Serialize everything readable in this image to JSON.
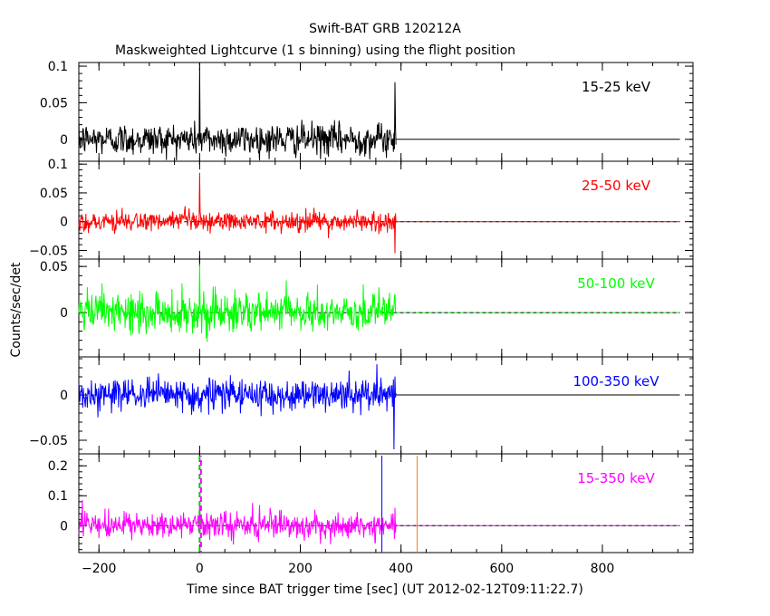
{
  "title": "Swift-BAT GRB 120212A",
  "subtitle": "Maskweighted Lightcurve (1 s binning) using the flight position",
  "colors": {
    "axis": "#000000",
    "t0_line": "#00cc00",
    "t90_line": "#0000ff",
    "end_line": "#ff8000"
  },
  "chart_data": {
    "type": "line",
    "title": "Swift-BAT GRB 120212A",
    "subtitle": "Maskweighted Lightcurve (1 s binning) using the flight position",
    "xlabel": "Time since BAT trigger time [sec] (UT 2012-02-12T09:11:22.7)",
    "ylabel": "Counts/sec/det",
    "xlim": [
      -240,
      980
    ],
    "x_ticks": [
      -200,
      0,
      200,
      400,
      600,
      800
    ],
    "markers": [
      {
        "x": 0,
        "color": "#00cc00",
        "style": "dashed"
      },
      {
        "x": 0,
        "color": "#ff00ff",
        "style": "dashed"
      },
      {
        "x": 362,
        "color": "#0000ff",
        "style": "solid"
      },
      {
        "x": 432,
        "color": "#ff8000",
        "style": "solid"
      }
    ],
    "panels": [
      {
        "name": "15-25 keV",
        "color": "#000000",
        "ylim": [
          -0.03,
          0.105
        ],
        "y_ticks": [
          0,
          0.05,
          0.1
        ],
        "data_range": [
          -240,
          390
        ],
        "noise_sigma": 0.011,
        "spikes": [
          [
            0,
            0.098
          ],
          [
            388,
            0.078
          ]
        ],
        "zero_line": "solid"
      },
      {
        "name": "25-50 keV",
        "color": "#ff0000",
        "ylim": [
          -0.065,
          0.105
        ],
        "y_ticks": [
          -0.05,
          0,
          0.05,
          0.1
        ],
        "data_range": [
          -240,
          390
        ],
        "noise_sigma": 0.009,
        "spikes": [
          [
            0,
            0.085
          ],
          [
            388,
            -0.055
          ]
        ],
        "zero_line": "dashed"
      },
      {
        "name": "50-100 keV",
        "color": "#00ff00",
        "ylim": [
          -0.048,
          0.058
        ],
        "y_ticks": [
          0,
          0.05
        ],
        "data_range": [
          -240,
          390
        ],
        "noise_sigma": 0.011,
        "spikes": [
          [
            0,
            0.052
          ],
          [
            388,
            0.02
          ]
        ],
        "zero_line": "dashed"
      },
      {
        "name": "100-350 keV",
        "color": "#0000ff",
        "ylim": [
          -0.065,
          0.042
        ],
        "y_ticks": [
          -0.05,
          0
        ],
        "data_range": [
          -240,
          390
        ],
        "noise_sigma": 0.009,
        "spikes": [
          [
            352,
            0.034
          ],
          [
            386,
            -0.06
          ]
        ],
        "zero_line": "solid"
      },
      {
        "name": "15-350 keV",
        "color": "#ff00ff",
        "ylim": [
          -0.09,
          0.24
        ],
        "y_ticks": [
          0,
          0.1,
          0.2
        ],
        "data_range": [
          -240,
          390
        ],
        "noise_sigma": 0.022,
        "spikes": [
          [
            0,
            0.07
          ],
          [
            388,
            0.06
          ]
        ],
        "zero_line": "dashed"
      }
    ]
  }
}
